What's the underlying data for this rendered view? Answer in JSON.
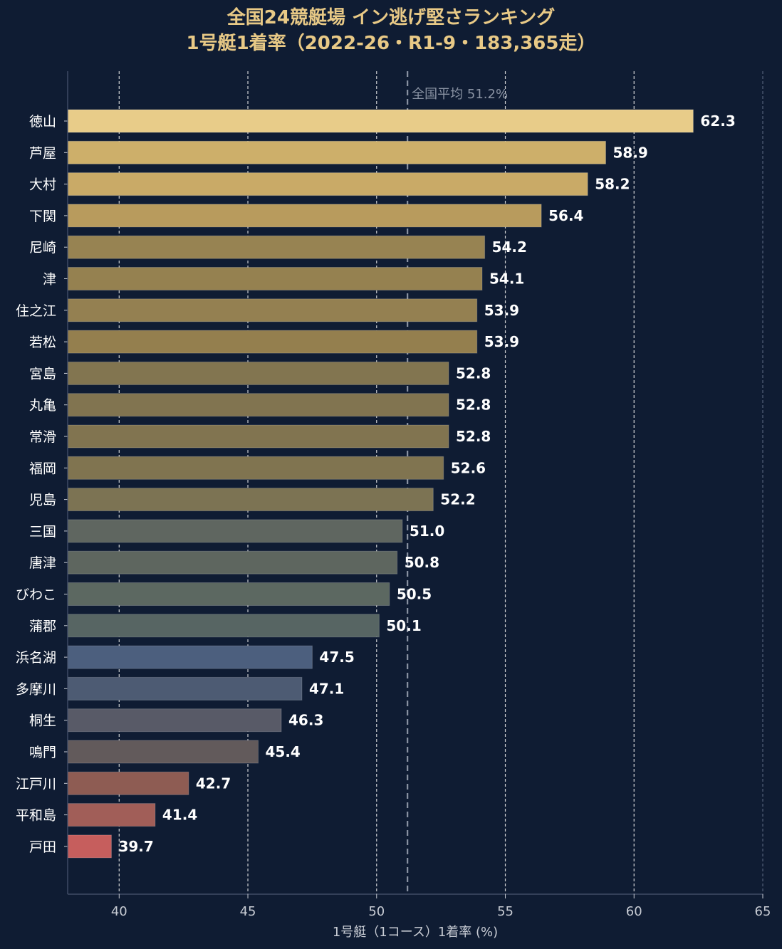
{
  "chart_data": {
    "type": "bar",
    "orientation": "horizontal",
    "title": "全国24競艇場 イン逃げ堅さランキング",
    "subtitle": "1号艇1着率（2022-26・R1-9・183,365走）",
    "xlabel": "1号艇（1コース）1着率 (%)",
    "ylabel": "",
    "xlim": [
      38,
      65
    ],
    "xticks": [
      40,
      45,
      50,
      55,
      60,
      65
    ],
    "grid": true,
    "reference_line": {
      "value": 51.2,
      "label": "全国平均 51.2%"
    },
    "categories": [
      "徳山",
      "芦屋",
      "大村",
      "下関",
      "尼崎",
      "津",
      "住之江",
      "若松",
      "宮島",
      "丸亀",
      "常滑",
      "福岡",
      "児島",
      "三国",
      "唐津",
      "びわこ",
      "蒲郡",
      "浜名湖",
      "多摩川",
      "桐生",
      "鳴門",
      "江戸川",
      "平和島",
      "戸田"
    ],
    "values": [
      62.3,
      58.9,
      58.2,
      56.4,
      54.2,
      54.1,
      53.9,
      53.9,
      52.8,
      52.8,
      52.8,
      52.6,
      52.2,
      51.0,
      50.8,
      50.5,
      50.1,
      47.5,
      47.1,
      46.3,
      45.4,
      42.7,
      41.4,
      39.7
    ],
    "value_labels": [
      "62.3",
      "58.9",
      "58.2",
      "56.4",
      "54.2",
      "54.1",
      "53.9",
      "53.9",
      "52.8",
      "52.8",
      "52.8",
      "52.6",
      "52.2",
      "51.0",
      "50.8",
      "50.5",
      "50.1",
      "47.5",
      "47.1",
      "46.3",
      "45.4",
      "42.7",
      "41.4",
      "39.7"
    ],
    "colors": [
      "#e8cc89",
      "#cdaf6a",
      "#c9aa67",
      "#b89b5d",
      "#978352",
      "#958150",
      "#948051",
      "#947f4e",
      "#827550",
      "#817450",
      "#817450",
      "#807450",
      "#7c7353",
      "#5f6660",
      "#5e665f",
      "#5c6861",
      "#576563",
      "#4c5f7e",
      "#4d5b73",
      "#585a67",
      "#625a5b",
      "#8e5c53",
      "#a15e58",
      "#c65e5d"
    ]
  },
  "style": {
    "background": "#0f1c33",
    "title_color": "#e8c986",
    "text_color": "#ffffff",
    "axis_color": "#c8ccd4",
    "grid_color": "#e6e6e6",
    "avg_line_color": "#8a93a3"
  }
}
